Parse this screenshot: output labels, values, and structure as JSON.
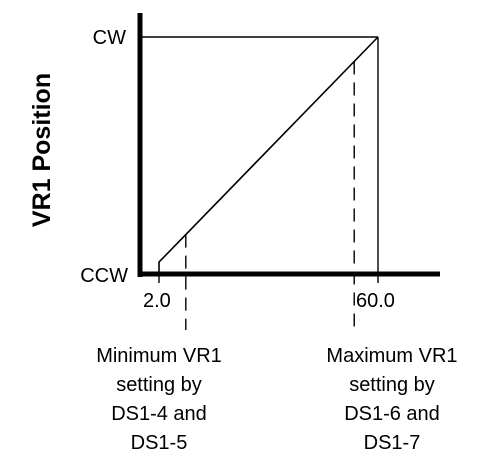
{
  "chart_data": {
    "type": "line",
    "title": "",
    "xlabel": "",
    "ylabel": "VR1 Position",
    "x_ticks": [
      {
        "value": 2.0,
        "label": "2.0"
      },
      {
        "value": 60.0,
        "label": "60.0"
      }
    ],
    "y_ticks": [
      {
        "value": 0,
        "label": "CCW"
      },
      {
        "value": 1,
        "label": "CW"
      }
    ],
    "xlim": [
      2.0,
      60.0
    ],
    "ylim": [
      0,
      1
    ],
    "grid": false,
    "legend": "none",
    "series": [
      {
        "x": [
          2.0,
          2.0,
          60.0
        ],
        "y": [
          0,
          0.05,
          1
        ]
      }
    ],
    "reference_lines": [
      {
        "x": 9.1
      },
      {
        "x": 53.7
      }
    ],
    "annotations": [
      {
        "x": 9.1,
        "lines": [
          "Minimum VR1",
          "setting by",
          "DS1-4 and",
          "DS1-5"
        ]
      },
      {
        "x": 53.7,
        "lines": [
          "Maximum VR1",
          "setting by",
          "DS1-6 and",
          "DS1-7"
        ]
      }
    ]
  }
}
